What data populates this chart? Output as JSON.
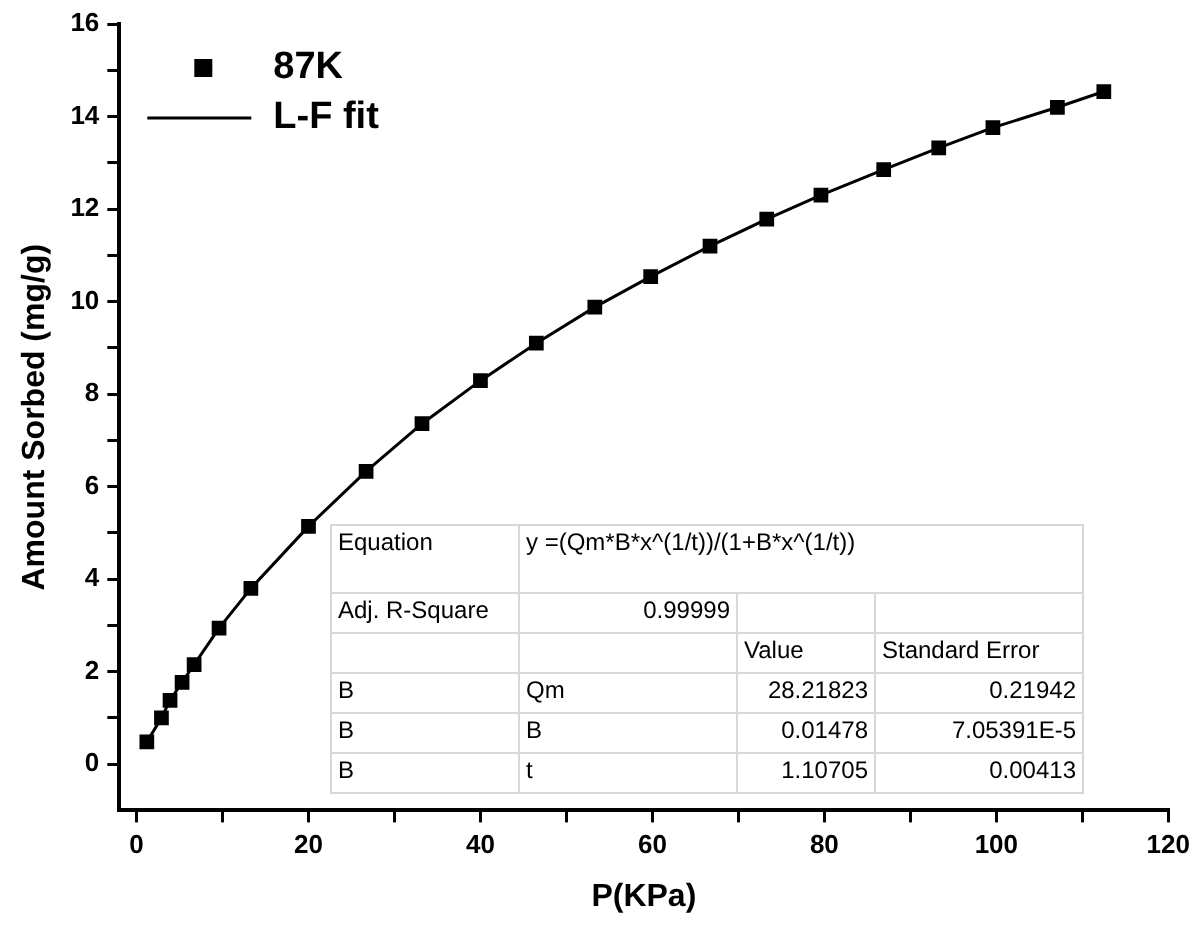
{
  "chart_data": {
    "type": "scatter",
    "xlabel": "P(KPa)",
    "ylabel": "Amount Sorbed (mg/g)",
    "xlim": [
      -2,
      120
    ],
    "ylim": [
      -1,
      16
    ],
    "xticks": [
      0,
      {
        "value": 10,
        "label": null
      },
      20,
      {
        "value": 30,
        "label": null
      },
      40,
      {
        "value": 50,
        "label": null
      },
      60,
      {
        "value": 70,
        "label": null
      },
      80,
      {
        "value": 90,
        "label": null
      },
      100,
      {
        "value": 110,
        "label": null
      },
      120
    ],
    "yticks": [
      0,
      {
        "value": 1,
        "label": null
      },
      2,
      {
        "value": 3,
        "label": null
      },
      4,
      {
        "value": 5,
        "label": null
      },
      6,
      {
        "value": 7,
        "label": null
      },
      8,
      {
        "value": 9,
        "label": null
      },
      10,
      {
        "value": 11,
        "label": null
      },
      12,
      {
        "value": 13,
        "label": null
      },
      14,
      {
        "value": 15,
        "label": null
      },
      16
    ],
    "grid": false,
    "legend": "top left",
    "series": [
      {
        "name": "87K",
        "marker": "square",
        "color": "#000000",
        "x": [
          1.2,
          2.9,
          3.9,
          5.3,
          6.7,
          9.6,
          13.3,
          20,
          26.7,
          33.2,
          40,
          46.5,
          53.3,
          59.8,
          66.7,
          73.3,
          79.6,
          86.9,
          93.3,
          99.6,
          107.1,
          112.5
        ],
        "values": [
          0.48,
          1.0,
          1.38,
          1.77,
          2.15,
          2.94,
          3.8,
          5.14,
          6.33,
          7.36,
          8.29,
          9.1,
          9.88,
          10.54,
          11.2,
          11.78,
          12.3,
          12.85,
          13.32,
          13.76,
          14.2,
          14.54
        ]
      },
      {
        "name": "L-F fit",
        "type": "line",
        "marker": "none",
        "color": "#000000",
        "line_style": "solid",
        "x": [
          1.2,
          2.9,
          3.9,
          5.3,
          6.7,
          9.6,
          13.3,
          20,
          26.7,
          33.2,
          40,
          46.5,
          53.3,
          59.8,
          66.7,
          73.3,
          79.6,
          86.9,
          93.3,
          99.6,
          107.1,
          112.5
        ],
        "values": [
          0.48,
          1.0,
          1.38,
          1.77,
          2.15,
          2.94,
          3.8,
          5.14,
          6.33,
          7.36,
          8.29,
          9.1,
          9.88,
          10.54,
          11.2,
          11.78,
          12.3,
          12.85,
          13.32,
          13.76,
          14.2,
          14.54
        ]
      }
    ],
    "annotations": [
      "Equation",
      "y =(Qm*B*x^(1/t))/(1+B*x^(1/t))",
      "Adj. R-Square",
      "0.99999",
      "Value",
      "Standard Error",
      "B",
      "Qm",
      "28.21823",
      "0.21942",
      "B",
      "B",
      "0.01478",
      "7.05391E-5",
      "B",
      "t",
      "1.10705",
      "0.00413"
    ]
  }
}
